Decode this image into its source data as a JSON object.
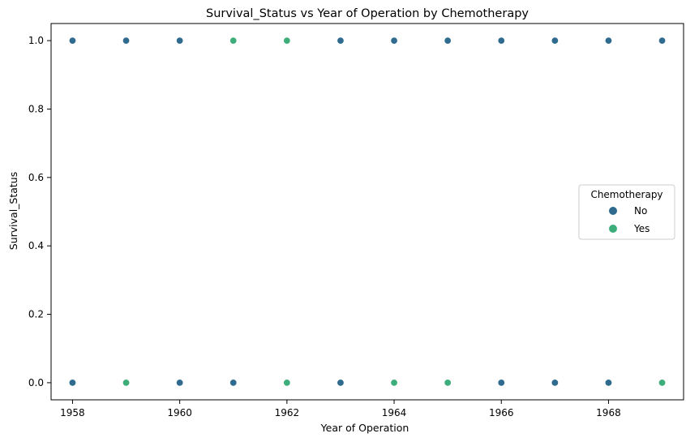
{
  "chart_data": {
    "type": "scatter",
    "title": "Survival_Status vs Year of Operation by Chemotherapy",
    "xlabel": "Year of Operation",
    "ylabel": "Survival_Status",
    "xlim": [
      1957.6,
      1969.4
    ],
    "ylim": [
      -0.05,
      1.05
    ],
    "xticks": [
      1958,
      1960,
      1962,
      1964,
      1966,
      1968
    ],
    "yticks": [
      0.0,
      0.2,
      0.4,
      0.6,
      0.8,
      1.0
    ],
    "xtick_labels": [
      "1958",
      "1960",
      "1962",
      "1964",
      "1966",
      "1968"
    ],
    "ytick_labels": [
      "0.0",
      "0.2",
      "0.4",
      "0.6",
      "0.8",
      "1.0"
    ],
    "grid": false,
    "legend": {
      "title": "Chemotherapy",
      "placement": "center-right"
    },
    "series": [
      {
        "name": "No",
        "color": "#2e6b8e",
        "points": [
          {
            "x": 1958,
            "y": 1
          },
          {
            "x": 1959,
            "y": 1
          },
          {
            "x": 1960,
            "y": 1
          },
          {
            "x": 1963,
            "y": 1
          },
          {
            "x": 1964,
            "y": 1
          },
          {
            "x": 1965,
            "y": 1
          },
          {
            "x": 1966,
            "y": 1
          },
          {
            "x": 1967,
            "y": 1
          },
          {
            "x": 1968,
            "y": 1
          },
          {
            "x": 1969,
            "y": 1
          },
          {
            "x": 1958,
            "y": 0
          },
          {
            "x": 1960,
            "y": 0
          },
          {
            "x": 1961,
            "y": 0
          },
          {
            "x": 1963,
            "y": 0
          },
          {
            "x": 1966,
            "y": 0
          },
          {
            "x": 1967,
            "y": 0
          },
          {
            "x": 1968,
            "y": 0
          }
        ]
      },
      {
        "name": "Yes",
        "color": "#3dae7a",
        "points": [
          {
            "x": 1961,
            "y": 1
          },
          {
            "x": 1962,
            "y": 1
          },
          {
            "x": 1959,
            "y": 0
          },
          {
            "x": 1962,
            "y": 0
          },
          {
            "x": 1964,
            "y": 0
          },
          {
            "x": 1965,
            "y": 0
          },
          {
            "x": 1969,
            "y": 0
          }
        ]
      }
    ]
  }
}
